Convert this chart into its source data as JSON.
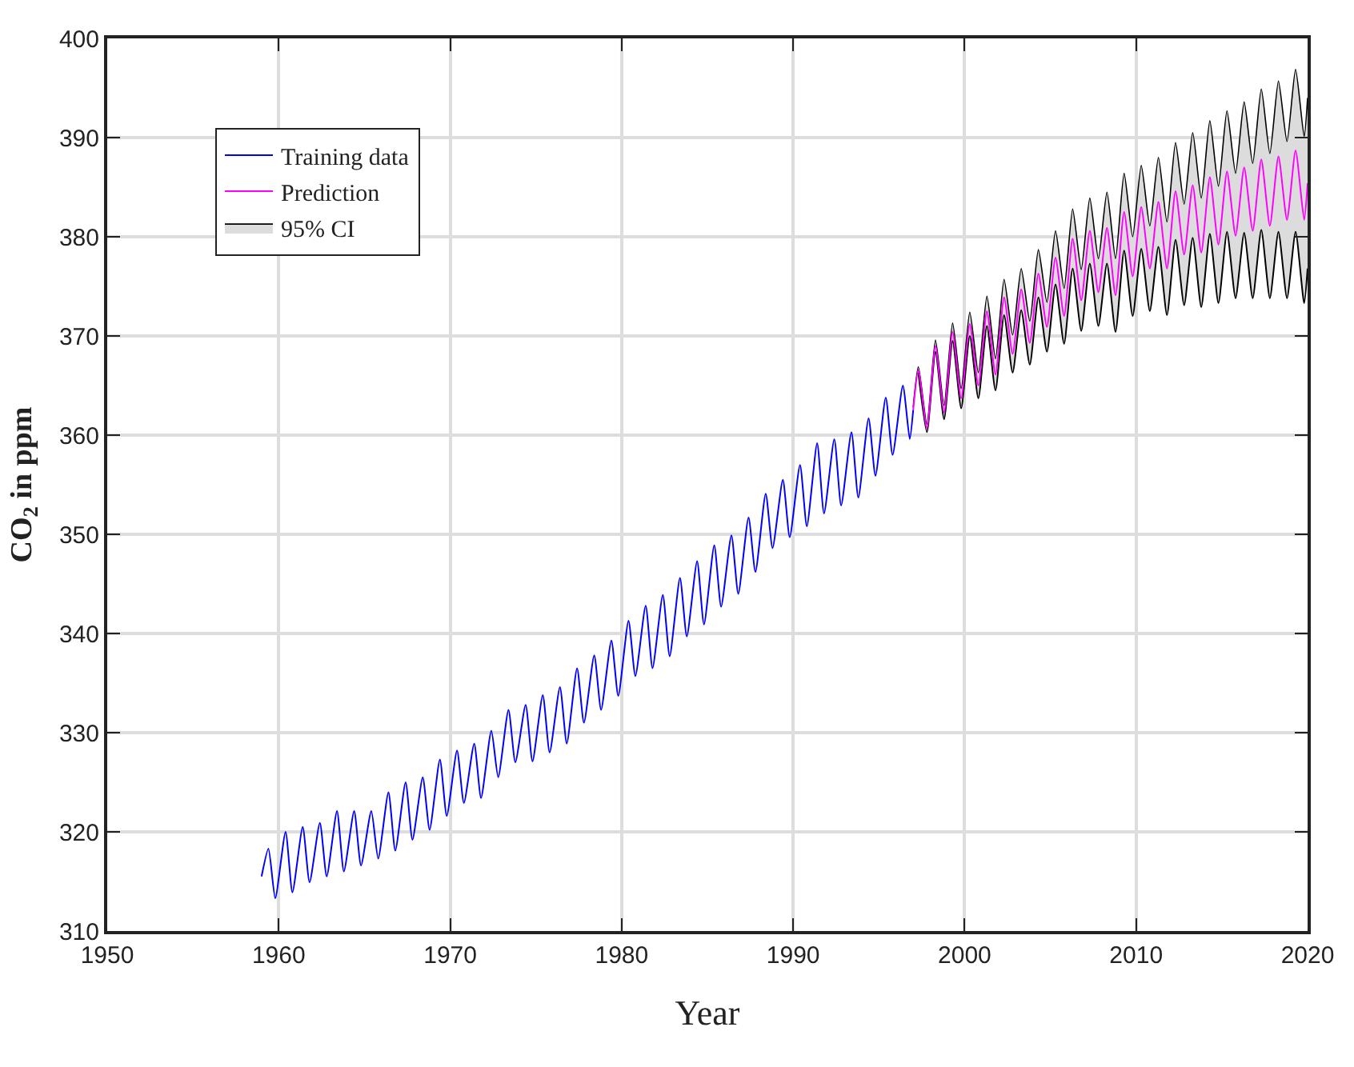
{
  "chart_data": {
    "type": "line",
    "xlabel": "Year",
    "ylabel": "CO$_{2}$ in ppm",
    "xlim": [
      1950,
      2020
    ],
    "xticks": [
      1950,
      1960,
      1970,
      1980,
      1990,
      2000,
      2010,
      2020
    ],
    "ylim": [
      310,
      400
    ],
    "yticks": [
      310,
      320,
      330,
      340,
      350,
      360,
      370,
      380,
      390,
      400
    ],
    "grid": true,
    "legend": "top left",
    "marker": "none",
    "line_style": "solid",
    "series": [
      {
        "name": "Training data",
        "color": "#0000ff",
        "x": [
          1959.0,
          1959.4,
          1959.8,
          1960.4,
          1960.8,
          1961.4,
          1961.8,
          1962.4,
          1962.8,
          1963.4,
          1963.8,
          1964.4,
          1964.8,
          1965.4,
          1965.8,
          1966.4,
          1966.8,
          1967.4,
          1967.8,
          1968.4,
          1968.8,
          1969.4,
          1969.8,
          1970.4,
          1970.8,
          1971.4,
          1971.8,
          1972.4,
          1972.8,
          1973.4,
          1973.8,
          1974.4,
          1974.8,
          1975.4,
          1975.8,
          1976.4,
          1976.8,
          1977.4,
          1977.8,
          1978.4,
          1978.8,
          1979.4,
          1979.8,
          1980.4,
          1980.8,
          1981.4,
          1981.8,
          1982.4,
          1982.8,
          1983.4,
          1983.8,
          1984.4,
          1984.8,
          1985.4,
          1985.8,
          1986.4,
          1986.8,
          1987.4,
          1987.8,
          1988.4,
          1988.8,
          1989.4,
          1989.8,
          1990.4,
          1990.8,
          1991.4,
          1991.8,
          1992.4,
          1992.8,
          1993.4,
          1993.8,
          1994.4,
          1994.8,
          1995.4,
          1995.8,
          1996.4,
          1996.8,
          1997.0
        ],
        "values": [
          315.5,
          318.3,
          313.3,
          320.0,
          313.9,
          320.5,
          314.9,
          320.9,
          315.5,
          322.1,
          316.0,
          322.1,
          316.6,
          322.1,
          317.3,
          324.0,
          318.1,
          325.0,
          319.2,
          325.5,
          320.2,
          327.3,
          321.6,
          328.2,
          322.9,
          328.9,
          323.4,
          330.2,
          325.5,
          332.3,
          327.0,
          332.8,
          327.1,
          333.8,
          328.0,
          334.6,
          328.9,
          336.5,
          331.0,
          337.8,
          332.3,
          339.3,
          333.7,
          341.3,
          335.7,
          342.8,
          336.5,
          343.9,
          337.7,
          345.6,
          339.7,
          347.3,
          340.9,
          348.9,
          342.7,
          349.9,
          344.0,
          351.7,
          346.2,
          354.1,
          348.6,
          355.5,
          349.7,
          357.0,
          350.8,
          359.2,
          352.1,
          359.6,
          352.9,
          360.3,
          353.7,
          361.7,
          355.9,
          363.8,
          358.0,
          365.0,
          359.6,
          362.5
        ]
      },
      {
        "name": "Prediction",
        "color": "#ff00ff",
        "x": [
          1997.0,
          1997.3,
          1997.8,
          1998.3,
          1998.8,
          1999.3,
          1999.8,
          2000.3,
          2000.8,
          2001.3,
          2001.8,
          2002.3,
          2002.8,
          2003.3,
          2003.8,
          2004.3,
          2004.8,
          2005.3,
          2005.8,
          2006.3,
          2006.8,
          2007.3,
          2007.8,
          2008.3,
          2008.8,
          2009.3,
          2009.8,
          2010.3,
          2010.8,
          2011.3,
          2011.8,
          2012.3,
          2012.8,
          2013.3,
          2013.8,
          2014.3,
          2014.8,
          2015.3,
          2015.8,
          2016.3,
          2016.8,
          2017.3,
          2017.8,
          2018.3,
          2018.8,
          2019.3,
          2019.8,
          2020.0
        ],
        "values": [
          362.5,
          366.6,
          360.7,
          369.0,
          362.3,
          370.4,
          363.7,
          371.2,
          365.0,
          372.5,
          366.1,
          373.9,
          368.2,
          374.7,
          369.3,
          376.3,
          370.9,
          377.9,
          372.0,
          379.8,
          373.6,
          380.6,
          374.4,
          380.9,
          374.1,
          382.5,
          376.0,
          383.0,
          376.8,
          383.5,
          376.8,
          384.6,
          378.2,
          385.2,
          378.4,
          386.0,
          379.2,
          386.6,
          380.1,
          387.0,
          380.6,
          387.8,
          381.1,
          388.1,
          381.7,
          388.7,
          381.7,
          385.4
        ]
      },
      {
        "name": "95% CI",
        "type": "area",
        "color": "#dcdcdc",
        "x": [
          1997.0,
          1997.3,
          1997.8,
          1998.3,
          1998.8,
          1999.3,
          1999.8,
          2000.3,
          2000.8,
          2001.3,
          2001.8,
          2002.3,
          2002.8,
          2003.3,
          2003.8,
          2004.3,
          2004.8,
          2005.3,
          2005.8,
          2006.3,
          2006.8,
          2007.3,
          2007.8,
          2008.3,
          2008.8,
          2009.3,
          2009.8,
          2010.3,
          2010.8,
          2011.3,
          2011.8,
          2012.3,
          2012.8,
          2013.3,
          2013.8,
          2014.3,
          2014.8,
          2015.3,
          2015.8,
          2016.3,
          2016.8,
          2017.3,
          2017.8,
          2018.3,
          2018.8,
          2019.3,
          2019.8,
          2020.0
        ],
        "values": [
          362.8,
          366.9,
          361.1,
          369.6,
          363.0,
          371.3,
          364.7,
          372.4,
          366.3,
          374.0,
          367.7,
          375.7,
          370.1,
          376.8,
          371.5,
          378.7,
          373.4,
          380.6,
          374.8,
          382.8,
          376.7,
          383.9,
          377.8,
          384.5,
          377.8,
          386.4,
          380.0,
          387.2,
          381.1,
          388.0,
          381.5,
          389.5,
          383.3,
          390.5,
          383.9,
          391.7,
          385.1,
          392.7,
          386.4,
          393.6,
          387.4,
          394.9,
          388.4,
          395.7,
          389.6,
          396.9,
          390.1,
          394.0
        ]
      },
      {
        "color": "#000000",
        "x": [
          1997.3,
          1997.8,
          1998.3,
          1998.8,
          1999.3,
          1999.8,
          2000.3,
          2000.8,
          2001.3,
          2001.8,
          2002.3,
          2002.8,
          2003.3,
          2003.8,
          2004.3,
          2004.8,
          2005.3,
          2005.8,
          2006.3,
          2006.8,
          2007.3,
          2007.8,
          2008.3,
          2008.8,
          2009.3,
          2009.8,
          2010.3,
          2010.8,
          2011.3,
          2011.8,
          2012.3,
          2012.8,
          2013.3,
          2013.8,
          2014.3,
          2014.8,
          2015.3,
          2015.8,
          2016.3,
          2016.8,
          2017.3,
          2017.8,
          2018.3,
          2018.8,
          2019.3,
          2019.8,
          2020.0
        ],
        "values": [
          366.3,
          360.3,
          368.4,
          361.6,
          369.5,
          362.7,
          370.0,
          363.7,
          371.0,
          364.5,
          372.1,
          366.3,
          372.6,
          367.1,
          373.9,
          368.4,
          375.2,
          369.2,
          376.8,
          370.5,
          377.3,
          371.0,
          377.3,
          370.4,
          378.6,
          372.0,
          378.8,
          372.5,
          379.0,
          372.1,
          379.7,
          373.1,
          379.9,
          372.9,
          380.3,
          373.3,
          380.5,
          373.8,
          380.4,
          373.8,
          380.7,
          373.8,
          380.5,
          373.8,
          380.5,
          373.3,
          376.8
        ]
      }
    ]
  }
}
